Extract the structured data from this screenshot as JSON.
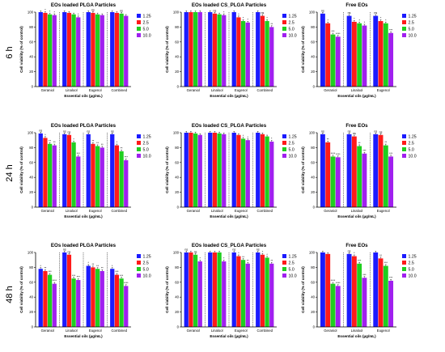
{
  "colors": {
    "1.25": "#1b1bff",
    "2.5": "#ff1a1a",
    "5.0": "#1fcf1f",
    "10.0": "#a020ef"
  },
  "rows": [
    {
      "label": "6 h"
    },
    {
      "label": "24 h"
    },
    {
      "label": "48 h"
    }
  ],
  "chart_data": [
    {
      "type": "bar",
      "row": "6 h",
      "title": "EOs loaded PLGA Particles",
      "xlabel": "Essential oils (µg/mL)",
      "ylabel": "Cell viability (% of control)",
      "ylim": [
        0,
        100
      ],
      "yticks": [
        0,
        20,
        40,
        60,
        80,
        100
      ],
      "categories": [
        "Geraniol",
        "Linalool",
        "Eugenol",
        "Combined"
      ],
      "legend": "right",
      "series": [
        {
          "name": "1.25",
          "values": [
            100,
            100,
            100,
            100
          ],
          "sig": [
            "",
            "",
            "",
            ""
          ]
        },
        {
          "name": "2.5",
          "values": [
            99,
            99,
            99,
            99
          ],
          "sig": [
            "*",
            "",
            "ns",
            ""
          ]
        },
        {
          "name": "5.0",
          "values": [
            97,
            97,
            97,
            98
          ],
          "sig": [
            "*",
            "",
            "",
            "ns"
          ]
        },
        {
          "name": "10.0",
          "values": [
            96,
            93,
            96,
            95
          ],
          "sig": [
            "*",
            "*",
            "",
            ""
          ]
        }
      ]
    },
    {
      "type": "bar",
      "row": "6 h",
      "title": "EOs loaded CS_PLGA Particles",
      "xlabel": "Essential oils (µg/mL)",
      "ylabel": "Cell viability (% of control)",
      "ylim": [
        0,
        100
      ],
      "yticks": [
        0,
        20,
        40,
        60,
        80,
        100
      ],
      "categories": [
        "Geraniol",
        "Linalool",
        "Eugenol",
        "Combined"
      ],
      "legend": "right",
      "series": [
        {
          "name": "1.25",
          "values": [
            100,
            100,
            100,
            100
          ],
          "sig": [
            "",
            "",
            "",
            ""
          ]
        },
        {
          "name": "2.5",
          "values": [
            100,
            98,
            93,
            95
          ],
          "sig": [
            "",
            "ns",
            "*",
            "ns"
          ]
        },
        {
          "name": "5.0",
          "values": [
            100,
            97,
            88,
            88
          ],
          "sig": [
            "",
            "",
            "*",
            "*"
          ]
        },
        {
          "name": "10.0",
          "values": [
            100,
            96,
            86,
            80
          ],
          "sig": [
            "",
            "*",
            "*",
            "**"
          ]
        }
      ]
    },
    {
      "type": "bar",
      "row": "6 h",
      "title": "Free EOs",
      "xlabel": "Essential oils (µg/mL)",
      "ylabel": "Cell viability (% of control)",
      "ylim": [
        0,
        100
      ],
      "yticks": [
        0,
        20,
        40,
        60,
        80,
        100
      ],
      "categories": [
        "Geraniol",
        "Linalool",
        "Eugenol"
      ],
      "legend": "right",
      "series": [
        {
          "name": "1.25",
          "values": [
            98,
            95,
            95
          ],
          "sig": [
            "ns",
            "ns",
            "ns"
          ]
        },
        {
          "name": "2.5",
          "values": [
            85,
            87,
            88
          ],
          "sig": [
            "*",
            "*",
            "*"
          ]
        },
        {
          "name": "5.0",
          "values": [
            70,
            85,
            85
          ],
          "sig": [
            "***",
            "*",
            "*"
          ]
        },
        {
          "name": "10.0",
          "values": [
            67,
            82,
            72
          ],
          "sig": [
            "****",
            "*",
            "***"
          ]
        }
      ]
    },
    {
      "type": "bar",
      "row": "24 h",
      "title": "EOs loaded PLGA Particles",
      "xlabel": "Essential oils (µg/mL)",
      "ylabel": "Cell viability (% of control)",
      "ylim": [
        0,
        100
      ],
      "yticks": [
        0,
        20,
        40,
        60,
        80,
        100
      ],
      "categories": [
        "Geraniol",
        "Linalool",
        "Eugenol",
        "Combined"
      ],
      "legend": "right",
      "series": [
        {
          "name": "1.25",
          "values": [
            99,
            98,
            98,
            98
          ],
          "sig": [
            "ns",
            "ns",
            "ns",
            "ns"
          ]
        },
        {
          "name": "2.5",
          "values": [
            93,
            97,
            85,
            83
          ],
          "sig": [
            "*",
            "ns",
            "**",
            "*"
          ]
        },
        {
          "name": "5.0",
          "values": [
            85,
            87,
            82,
            75
          ],
          "sig": [
            "**",
            "*",
            "**",
            "**"
          ]
        },
        {
          "name": "10.0",
          "values": [
            83,
            68,
            80,
            63
          ],
          "sig": [
            "**",
            "***",
            "**",
            "***"
          ]
        }
      ]
    },
    {
      "type": "bar",
      "row": "24 h",
      "title": "EOs loaded CS_PLGA Particles",
      "xlabel": "Essential oils (µg/mL)",
      "ylabel": "Cell viability (% of control)",
      "ylim": [
        0,
        100
      ],
      "yticks": [
        0,
        20,
        40,
        60,
        80,
        100
      ],
      "categories": [
        "Geraniol",
        "Linalool",
        "Eugenol",
        "Combined"
      ],
      "legend": "right",
      "series": [
        {
          "name": "1.25",
          "values": [
            100,
            100,
            100,
            100
          ],
          "sig": [
            "",
            "",
            "",
            ""
          ]
        },
        {
          "name": "2.5",
          "values": [
            100,
            100,
            97,
            98
          ],
          "sig": [
            "",
            "",
            "",
            ""
          ]
        },
        {
          "name": "5.0",
          "values": [
            99,
            99,
            92,
            95
          ],
          "sig": [
            "",
            "",
            "*",
            ""
          ]
        },
        {
          "name": "10.0",
          "values": [
            97,
            98,
            90,
            88
          ],
          "sig": [
            "",
            "",
            "*",
            "*"
          ]
        }
      ]
    },
    {
      "type": "bar",
      "row": "24 h",
      "title": "Free EOs",
      "xlabel": "Essential oils (µg/mL)",
      "ylabel": "Cell viability (% of control)",
      "ylim": [
        0,
        100
      ],
      "yticks": [
        0,
        20,
        40,
        60,
        80,
        100
      ],
      "categories": [
        "Geraniol",
        "Linalool",
        "Eugenol"
      ],
      "legend": "right",
      "series": [
        {
          "name": "1.25",
          "values": [
            98,
            98,
            98
          ],
          "sig": [
            "ns",
            "ns",
            "ns"
          ]
        },
        {
          "name": "2.5",
          "values": [
            87,
            95,
            97
          ],
          "sig": [
            "**",
            "ns",
            "ns"
          ]
        },
        {
          "name": "5.0",
          "values": [
            68,
            82,
            83
          ],
          "sig": [
            "****",
            "**",
            "**"
          ]
        },
        {
          "name": "10.0",
          "values": [
            67,
            72,
            68
          ],
          "sig": [
            "****",
            "***",
            "***"
          ]
        }
      ]
    },
    {
      "type": "bar",
      "row": "48 h",
      "title": "EOs loaded PLGA Particles",
      "xlabel": "Essential oils (µg/mL)",
      "ylabel": "Cell viability (% of control)",
      "ylim": [
        0,
        100
      ],
      "yticks": [
        0,
        20,
        40,
        60,
        80,
        100
      ],
      "categories": [
        "Geraniol",
        "Linalool",
        "Eugenol",
        "Combined"
      ],
      "legend": "right",
      "series": [
        {
          "name": "1.25",
          "values": [
            78,
            100,
            82,
            78
          ],
          "sig": [
            "*",
            "ns",
            "*",
            "*"
          ]
        },
        {
          "name": "2.5",
          "values": [
            75,
            97,
            80,
            70
          ],
          "sig": [
            "**",
            "ns",
            "**",
            "***"
          ]
        },
        {
          "name": "5.0",
          "values": [
            70,
            65,
            78,
            65
          ],
          "sig": [
            "***",
            "***",
            "**",
            "***"
          ]
        },
        {
          "name": "10.0",
          "values": [
            58,
            63,
            75,
            55
          ],
          "sig": [
            "****",
            "***",
            "**",
            "****"
          ]
        }
      ]
    },
    {
      "type": "bar",
      "row": "48 h",
      "title": "EOs loaded CS_PLGA Particles",
      "xlabel": "Essential oils (µg/mL)",
      "ylabel": "Cell viability (% of control)",
      "ylim": [
        0,
        100
      ],
      "yticks": [
        0,
        20,
        40,
        60,
        80,
        100
      ],
      "categories": [
        "Geraniol",
        "Linalool",
        "Eugenol",
        "Combined"
      ],
      "legend": "right",
      "series": [
        {
          "name": "1.25",
          "values": [
            100,
            100,
            100,
            100
          ],
          "sig": [
            "ns",
            "",
            "ns",
            "ns"
          ]
        },
        {
          "name": "2.5",
          "values": [
            100,
            100,
            95,
            97
          ],
          "sig": [
            "",
            "",
            "*",
            "*"
          ]
        },
        {
          "name": "5.0",
          "values": [
            97,
            100,
            90,
            93
          ],
          "sig": [
            "ns",
            "",
            "**",
            "*"
          ]
        },
        {
          "name": "10.0",
          "values": [
            88,
            88,
            85,
            85
          ],
          "sig": [
            "*",
            "*",
            "**",
            "**"
          ]
        }
      ]
    },
    {
      "type": "bar",
      "row": "48 h",
      "title": "Free EOs",
      "xlabel": "Essential oils (µg/mL)",
      "ylabel": "Cell viability (% of control)",
      "ylim": [
        0,
        100
      ],
      "yticks": [
        0,
        20,
        40,
        60,
        80,
        100
      ],
      "categories": [
        "Geraniol",
        "Linalool",
        "Eugenol"
      ],
      "legend": "right",
      "series": [
        {
          "name": "1.25",
          "values": [
            100,
            98,
            100
          ],
          "sig": [
            "",
            "ns",
            ""
          ]
        },
        {
          "name": "2.5",
          "values": [
            98,
            95,
            92
          ],
          "sig": [
            "",
            "*",
            "**"
          ]
        },
        {
          "name": "5.0",
          "values": [
            58,
            85,
            82
          ],
          "sig": [
            "****",
            "***",
            "***"
          ]
        },
        {
          "name": "10.0",
          "values": [
            55,
            66,
            62
          ],
          "sig": [
            "****",
            "***",
            "***"
          ]
        }
      ]
    }
  ]
}
